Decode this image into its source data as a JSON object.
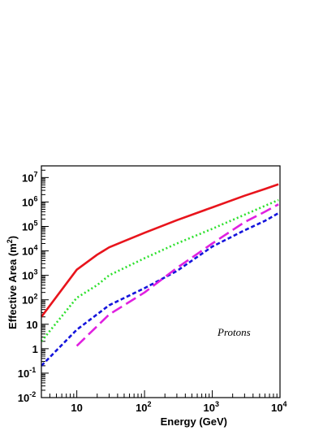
{
  "chart_data": {
    "type": "line",
    "title": "",
    "xlabel": "Energy (GeV)",
    "ylabel": "Effective Area (m",
    "ylabel_sup": "2",
    "ylabel_close": ")",
    "xscale": "log",
    "yscale": "log",
    "xlim": [
      3,
      10000
    ],
    "ylim": [
      0.01,
      30000000
    ],
    "grid": false,
    "annotation": "Protons",
    "x_ticks": [
      {
        "value": 10,
        "base": "10",
        "exp": ""
      },
      {
        "value": 100,
        "base": "10",
        "exp": "2"
      },
      {
        "value": 1000,
        "base": "10",
        "exp": "3"
      },
      {
        "value": 10000,
        "base": "10",
        "exp": "4"
      }
    ],
    "y_ticks": [
      {
        "value": 0.01,
        "base": "10",
        "exp": "-2"
      },
      {
        "value": 0.1,
        "base": "10",
        "exp": "-1"
      },
      {
        "value": 1,
        "base": "1",
        "exp": ""
      },
      {
        "value": 10,
        "base": "10",
        "exp": ""
      },
      {
        "value": 100,
        "base": "10",
        "exp": "2"
      },
      {
        "value": 1000,
        "base": "10",
        "exp": "3"
      },
      {
        "value": 10000,
        "base": "10",
        "exp": "4"
      },
      {
        "value": 100000,
        "base": "10",
        "exp": "5"
      },
      {
        "value": 1000000,
        "base": "10",
        "exp": "6"
      },
      {
        "value": 10000000,
        "base": "10",
        "exp": "7"
      }
    ],
    "series": [
      {
        "color": "#e8141c",
        "style": "solid",
        "points": [
          [
            3,
            20
          ],
          [
            10,
            1700
          ],
          [
            20,
            7000
          ],
          [
            30,
            14000
          ],
          [
            50,
            25000
          ],
          [
            100,
            55000
          ],
          [
            300,
            180000
          ],
          [
            1000,
            600000
          ],
          [
            3000,
            1800000
          ],
          [
            6000,
            3400000
          ],
          [
            9500,
            5300000
          ]
        ]
      },
      {
        "color": "#2ee02e",
        "style": "dotted",
        "points": [
          [
            3,
            2
          ],
          [
            10,
            120
          ],
          [
            20,
            400
          ],
          [
            30,
            1000
          ],
          [
            100,
            5000
          ],
          [
            300,
            20000
          ],
          [
            1000,
            80000
          ],
          [
            3000,
            300000
          ],
          [
            6000,
            700000
          ],
          [
            9500,
            1200000
          ]
        ]
      },
      {
        "color": "#1414dc",
        "style": "dashed",
        "points": [
          [
            3,
            0.2
          ],
          [
            10,
            6
          ],
          [
            30,
            60
          ],
          [
            100,
            300
          ],
          [
            300,
            1500
          ],
          [
            1000,
            15000
          ],
          [
            3000,
            70000
          ],
          [
            6000,
            170000
          ],
          [
            9500,
            350000
          ]
        ]
      },
      {
        "color": "#e020e0",
        "style": "longdash",
        "points": [
          [
            10,
            1.3
          ],
          [
            30,
            25
          ],
          [
            100,
            200
          ],
          [
            300,
            2000
          ],
          [
            1000,
            20000
          ],
          [
            3000,
            150000
          ],
          [
            6000,
            400000
          ],
          [
            9500,
            800000
          ]
        ]
      }
    ]
  }
}
